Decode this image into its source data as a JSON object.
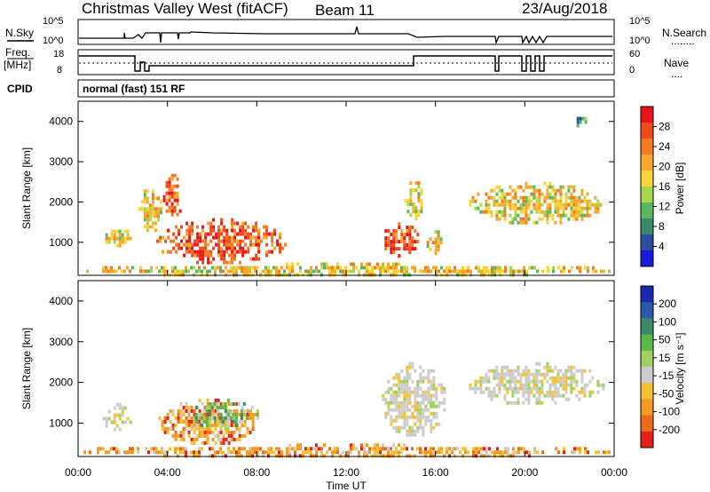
{
  "header": {
    "title": "Christmas Valley West (fitACF)",
    "beam": "Beam 11",
    "date": "23/Aug/2018"
  },
  "nsky_panel": {
    "left_label": "N.Sky",
    "left_ticks": [
      "10^5",
      "10^0"
    ],
    "right_ticks": [
      "10^5",
      "10^0"
    ],
    "right_label": "N.Search",
    "right_legend": "........"
  },
  "freq_panel": {
    "left_label_line1": "Freq.",
    "left_label_line2": "[MHz]",
    "left_ticks": [
      "18",
      "8"
    ],
    "right_ticks": [
      "60",
      "0"
    ],
    "right_label": "Nave",
    "right_legend": "...."
  },
  "cpid": {
    "label": "CPID",
    "value": "normal (fast) 151 RF"
  },
  "x_axis": {
    "label": "Time UT",
    "ticks": [
      "00:00",
      "04:00",
      "08:00",
      "12:00",
      "16:00",
      "20:00",
      "00:00"
    ]
  },
  "chart_data": [
    {
      "type": "heatmap",
      "name": "power",
      "ylabel": "Slant Range [km]",
      "yticks": [
        "4000",
        "3000",
        "2000",
        "1000"
      ],
      "ylim": [
        180,
        4500
      ],
      "xlim_hours": [
        0,
        24
      ],
      "colorbar": {
        "label": "Power [dB]",
        "ticks": [
          "28",
          "24",
          "20",
          "16",
          "12",
          "8",
          "4"
        ],
        "colors": [
          "#e8141c",
          "#ee4a1c",
          "#f57a20",
          "#f9a72a",
          "#f8d43a",
          "#a8d848",
          "#58b860",
          "#3d8a6a",
          "#2b4ea2",
          "#1a1ad8"
        ]
      },
      "regions": [
        {
          "t": [
            1.1,
            2.3
          ],
          "r": [
            900,
            1400
          ],
          "value": "moderate"
        },
        {
          "t": [
            2.7,
            3.7
          ],
          "r": [
            1300,
            2400
          ],
          "value": "moderate"
        },
        {
          "t": [
            3.8,
            4.6
          ],
          "r": [
            1600,
            2700
          ],
          "value": "strong"
        },
        {
          "t": [
            3.5,
            9.3
          ],
          "r": [
            500,
            1600
          ],
          "value": "strong"
        },
        {
          "t": [
            0.0,
            23.8
          ],
          "r": [
            200,
            500
          ],
          "value": "moderate"
        },
        {
          "t": [
            13.6,
            15.2
          ],
          "r": [
            700,
            1500
          ],
          "value": "strong"
        },
        {
          "t": [
            14.6,
            15.4
          ],
          "r": [
            1600,
            2600
          ],
          "value": "moderate"
        },
        {
          "t": [
            15.6,
            16.4
          ],
          "r": [
            700,
            1300
          ],
          "value": "moderate"
        },
        {
          "t": [
            17.5,
            23.5
          ],
          "r": [
            1500,
            2500
          ],
          "value": "moderate"
        },
        {
          "t": [
            22.2,
            22.7
          ],
          "r": [
            3900,
            4200
          ],
          "value": "weak"
        }
      ]
    },
    {
      "type": "heatmap",
      "name": "velocity",
      "ylabel": "Slant Range [km]",
      "yticks": [
        "4000",
        "3000",
        "2000",
        "1000"
      ],
      "ylim": [
        180,
        4500
      ],
      "xlim_hours": [
        0,
        24
      ],
      "colorbar": {
        "label": "Velocity [m s⁻¹]",
        "ticks": [
          "200",
          "100",
          "50",
          "15",
          "-15",
          "-50",
          "-100",
          "-200"
        ],
        "colors": [
          "#1a2ab0",
          "#2a5aa8",
          "#3a8a6a",
          "#58b848",
          "#a0d060",
          "#cccccc",
          "#f6c030",
          "#f59a20",
          "#f06a1c",
          "#e8201c"
        ]
      },
      "regions": [
        {
          "t": [
            0.0,
            23.8
          ],
          "r": [
            200,
            500
          ],
          "value": "negative"
        },
        {
          "t": [
            3.6,
            8.0
          ],
          "r": [
            500,
            1600
          ],
          "value": "negative"
        },
        {
          "t": [
            5.0,
            8.0
          ],
          "r": [
            900,
            1600
          ],
          "value": "positive"
        },
        {
          "t": [
            1.1,
            2.3
          ],
          "r": [
            800,
            1500
          ],
          "value": "near-zero"
        },
        {
          "t": [
            13.6,
            16.4
          ],
          "r": [
            700,
            2500
          ],
          "value": "near-zero"
        },
        {
          "t": [
            17.5,
            23.5
          ],
          "r": [
            1500,
            2500
          ],
          "value": "near-zero"
        }
      ]
    }
  ]
}
